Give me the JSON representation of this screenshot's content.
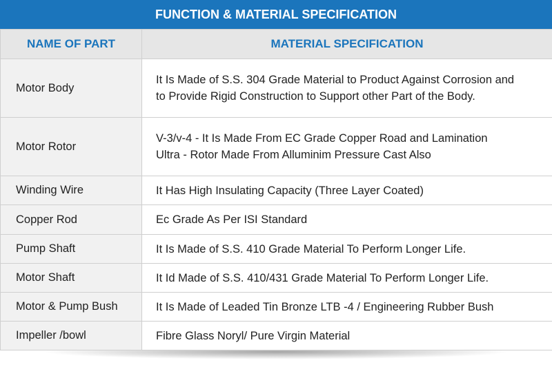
{
  "table": {
    "title": "FUNCTION & MATERIAL SPECIFICATION",
    "headers": [
      "NAME OF PART",
      "MATERIAL SPECIFICATION"
    ],
    "rows": [
      {
        "part": "Motor Body",
        "spec": [
          "It Is Made of S.S. 304 Grade Material to Product Against Corrosion and",
          "to Provide Rigid Construction to Support other Part of the Body."
        ]
      },
      {
        "part": "Motor Rotor",
        "spec": [
          "V-3/v-4 - It Is Made From EC Grade Copper Road and Lamination",
          "Ultra - Rotor Made From Alluminim Pressure Cast Also"
        ]
      },
      {
        "part": "Winding Wire",
        "spec": [
          "It Has High Insulating Capacity (Three Layer Coated)"
        ]
      },
      {
        "part": "Copper Rod",
        "spec": [
          "Ec Grade As Per ISI Standard"
        ]
      },
      {
        "part": "Pump Shaft",
        "spec": [
          "It Is Made of S.S. 410 Grade Material To Perform Longer Life."
        ]
      },
      {
        "part": "Motor Shaft",
        "spec": [
          "It Id Made of S.S. 410/431 Grade Material To Perform Longer Life."
        ]
      },
      {
        "part": "Motor & Pump Bush",
        "spec": [
          "It Is Made of Leaded Tin Bronze LTB -4 / Engineering Rubber Bush"
        ]
      },
      {
        "part": "Impeller /bowl",
        "spec": [
          "Fibre Glass Noryl/ Pure Virgin Material"
        ]
      }
    ]
  }
}
